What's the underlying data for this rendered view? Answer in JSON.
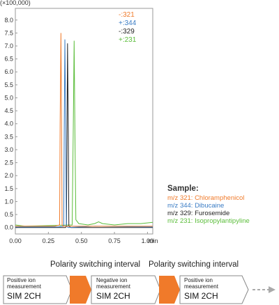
{
  "chart_data": {
    "type": "line",
    "multiplier_label": "(×100,000)",
    "xlabel": "min",
    "x_ticks": [
      "0.00",
      "0.25",
      "0.50",
      "0.75",
      "1.00"
    ],
    "y_ticks": [
      "0.0",
      "0.5",
      "1.0",
      "1.5",
      "2.0",
      "2.5",
      "3.0",
      "3.5",
      "4.0",
      "4.5",
      "5.0",
      "5.5",
      "6.0",
      "6.5",
      "7.0",
      "7.5",
      "8.0"
    ],
    "xlim": [
      0,
      1.04
    ],
    "ylim": [
      -0.25,
      8.45
    ],
    "series": [
      {
        "name": "-:321",
        "color": "#f07a2a",
        "peak_x": 0.345,
        "peak_y": 7.5,
        "points": [
          [
            0,
            0.05
          ],
          [
            0.3,
            0.05
          ],
          [
            0.335,
            0.1
          ],
          [
            0.339,
            4.0
          ],
          [
            0.345,
            7.5
          ],
          [
            0.35,
            4.0
          ],
          [
            0.354,
            0.1
          ],
          [
            0.36,
            0.05
          ],
          [
            1.04,
            0.05
          ]
        ]
      },
      {
        "name": "+:344",
        "color": "#3a7cc4",
        "peak_x": 0.375,
        "peak_y": 7.25,
        "points": [
          [
            0,
            0.02
          ],
          [
            0.32,
            0.02
          ],
          [
            0.366,
            0.05
          ],
          [
            0.37,
            3.8
          ],
          [
            0.375,
            7.25
          ],
          [
            0.381,
            3.8
          ],
          [
            0.386,
            0.05
          ],
          [
            0.4,
            0.0
          ],
          [
            0.6,
            0.05
          ],
          [
            1.04,
            0.02
          ]
        ]
      },
      {
        "name": "-:329",
        "color": "#222222",
        "peak_x": 0.395,
        "peak_y": 7.1,
        "points": [
          [
            0,
            0.0
          ],
          [
            0.38,
            0.0
          ],
          [
            0.387,
            0.05
          ],
          [
            0.391,
            3.6
          ],
          [
            0.395,
            7.1
          ],
          [
            0.401,
            3.6
          ],
          [
            0.405,
            0.05
          ],
          [
            0.42,
            0.0
          ],
          [
            1.04,
            0.0
          ]
        ]
      },
      {
        "name": "+:231",
        "color": "#5bbd3a",
        "peak_x": 0.445,
        "peak_y": 7.2,
        "points": [
          [
            0,
            0.1
          ],
          [
            0.07,
            0.05
          ],
          [
            0.3,
            0.08
          ],
          [
            0.43,
            0.1
          ],
          [
            0.438,
            3.6
          ],
          [
            0.445,
            7.2
          ],
          [
            0.451,
            3.6
          ],
          [
            0.458,
            0.3
          ],
          [
            0.48,
            0.15
          ],
          [
            0.55,
            0.1
          ],
          [
            0.6,
            0.15
          ],
          [
            0.63,
            0.22
          ],
          [
            0.66,
            0.15
          ],
          [
            0.75,
            0.1
          ],
          [
            0.85,
            0.15
          ],
          [
            0.95,
            0.15
          ],
          [
            1.04,
            0.2
          ]
        ]
      }
    ]
  },
  "sample": {
    "title": "Sample:",
    "items": [
      {
        "text": "m/z 321: Chloramphenicol",
        "color": "#f07a2a"
      },
      {
        "text": "m/z 344: Dibucaine",
        "color": "#3a7cc4"
      },
      {
        "text": "m/z 329: Furosemide",
        "color": "#222222"
      },
      {
        "text": "m/z 231: Isopropylantipyline",
        "color": "#5bbd3a"
      }
    ]
  },
  "flow": {
    "interval_label": "Polarity switching interval",
    "step1": {
      "line1": "Positive ion",
      "line2": "measurement",
      "mode": "SIM 2CH"
    },
    "step2": {
      "line1": "Negative ion",
      "line2": "measurement",
      "mode": "SIM 2CH"
    },
    "step3": {
      "line1": "Positive ion",
      "line2": "measurement",
      "mode": "SIM 2CH"
    },
    "arrow_color": "#f07a2a"
  }
}
